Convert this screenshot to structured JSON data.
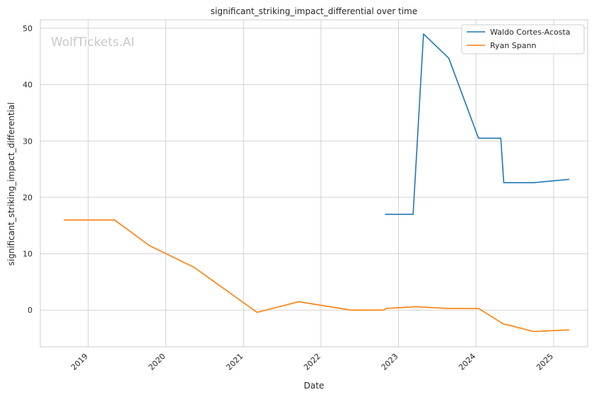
{
  "watermark": "WolfTickets.AI",
  "chart_data": {
    "type": "line",
    "title": "significant_striking_impact_differential over time",
    "xlabel": "Date",
    "ylabel": "significant_striking_impact_differential",
    "x_ticks": [
      "2019",
      "2020",
      "2021",
      "2022",
      "2023",
      "2024",
      "2025"
    ],
    "x_range": [
      "2018-05-20",
      "2025-06-10"
    ],
    "y_ticks": [
      0,
      10,
      20,
      30,
      40,
      50
    ],
    "ylim": [
      -6.5,
      51.5
    ],
    "grid": true,
    "legend_position": "top-right",
    "series": [
      {
        "name": "Waldo Cortes-Acosta",
        "color": "#1f77b4",
        "points": [
          [
            "2022-10-29",
            17.0
          ],
          [
            "2023-03-11",
            17.0
          ],
          [
            "2023-04-29",
            49.0
          ],
          [
            "2023-08-26",
            44.7
          ],
          [
            "2024-01-13",
            30.5
          ],
          [
            "2024-04-27",
            30.5
          ],
          [
            "2024-05-11",
            22.6
          ],
          [
            "2024-09-28",
            22.6
          ],
          [
            "2025-03-15",
            23.2
          ]
        ]
      },
      {
        "name": "Ryan Spann",
        "color": "#ff7f0e",
        "points": [
          [
            "2018-09-08",
            16.0
          ],
          [
            "2019-05-04",
            16.0
          ],
          [
            "2019-10-18",
            11.4
          ],
          [
            "2020-05-13",
            7.6
          ],
          [
            "2021-03-06",
            -0.4
          ],
          [
            "2021-09-18",
            1.5
          ],
          [
            "2022-05-21",
            0.0
          ],
          [
            "2022-10-22",
            0.0
          ],
          [
            "2022-11-05",
            0.3
          ],
          [
            "2023-03-25",
            0.6
          ],
          [
            "2023-08-19",
            0.3
          ],
          [
            "2024-01-13",
            0.3
          ],
          [
            "2024-05-11",
            -2.5
          ],
          [
            "2024-06-08",
            -2.7
          ],
          [
            "2024-09-28",
            -3.8
          ],
          [
            "2025-03-15",
            -3.5
          ]
        ]
      }
    ]
  }
}
